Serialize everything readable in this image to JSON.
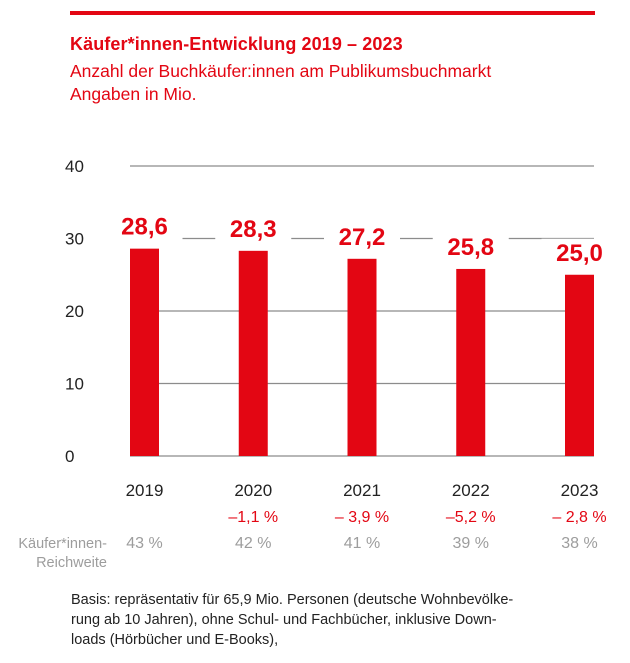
{
  "colors": {
    "accent": "#e30613",
    "grid": "#8c8c8c",
    "axis_text": "#222222",
    "muted": "#9d9d9d"
  },
  "header": {
    "title": "Käufer*innen-Entwicklung 2019 – 2023",
    "subtitle_line1": "Anzahl der Buchkäufer:innen am Publikumsbuchmarkt",
    "subtitle_line2": "Angaben in Mio."
  },
  "chart_data": {
    "type": "bar",
    "title": "Käufer*innen-Entwicklung 2019 – 2023",
    "subtitle": "Anzahl der Buchkäufer:innen am Publikumsbuchmarkt, Angaben in Mio.",
    "xlabel": "",
    "ylabel": "Mio.",
    "categories": [
      "2019",
      "2020",
      "2021",
      "2022",
      "2023"
    ],
    "values": [
      28.6,
      28.3,
      27.2,
      25.8,
      25.0
    ],
    "value_labels": [
      "28,6",
      "28,3",
      "27,2",
      "25,8",
      "25,0"
    ],
    "change_labels": [
      "",
      "–1,1 %",
      "– 3,9 %",
      "–5,2 %",
      "– 2,8 %"
    ],
    "changes_percent": [
      null,
      -1.1,
      -3.9,
      -5.2,
      -2.8
    ],
    "reach_label_line1": "Käufer*innen-",
    "reach_label_line2": "Reichweite",
    "reach_labels": [
      "43 %",
      "42 %",
      "41 %",
      "39 %",
      "38 %"
    ],
    "reach_percent": [
      43,
      42,
      41,
      39,
      38
    ],
    "ylim": [
      0,
      40
    ],
    "yticks": [
      0,
      10,
      20,
      30,
      40
    ],
    "ytick_labels": [
      "0",
      "10",
      "20",
      "30",
      "40"
    ],
    "grid": true,
    "legend": "none"
  },
  "footnote": {
    "line1": "Basis: repräsentativ für 65,9 Mio. Personen (deutsche Wohnbevölke-",
    "line2": "rung ab 10 Jahren), ohne Schul- und Fachbücher, inklusive Down-",
    "line3": "loads (Hörbücher und E-Books),"
  }
}
